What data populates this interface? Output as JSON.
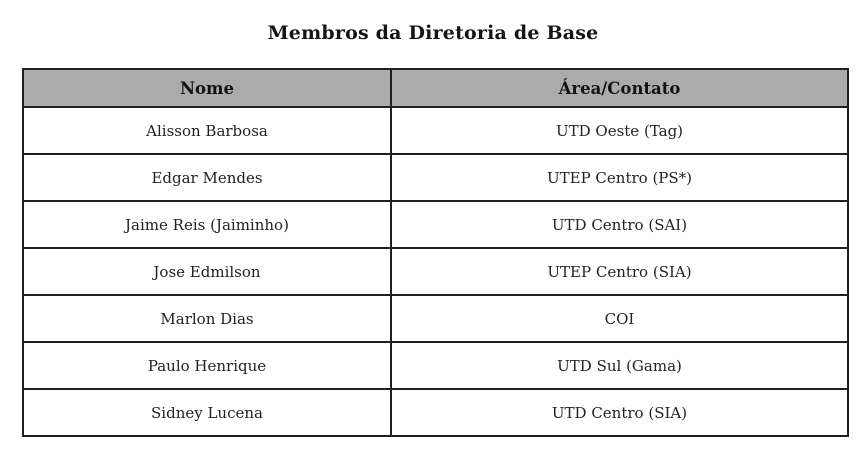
{
  "page": {
    "title": "Membros da Diretoria de Base"
  },
  "table": {
    "headers": [
      "Nome",
      "Área/Contato"
    ],
    "rows": [
      {
        "nome": "Alisson Barbosa",
        "area": "UTD Oeste (Tag)"
      },
      {
        "nome": "Edgar Mendes",
        "area": "UTEP Centro (PS*)"
      },
      {
        "nome": "Jaime Reis (Jaiminho)",
        "area": "UTD Centro (SAI)"
      },
      {
        "nome": "Jose Edmilson",
        "area": "UTEP Centro (SIA)"
      },
      {
        "nome": "Marlon Dias",
        "area": "COI"
      },
      {
        "nome": "Paulo Henrique",
        "area": "UTD Sul (Gama)"
      },
      {
        "nome": "Sidney Lucena",
        "area": "UTD Centro (SIA)"
      }
    ],
    "colors": {
      "header_bg": "#ababab",
      "border": "#1f1f1f"
    }
  }
}
